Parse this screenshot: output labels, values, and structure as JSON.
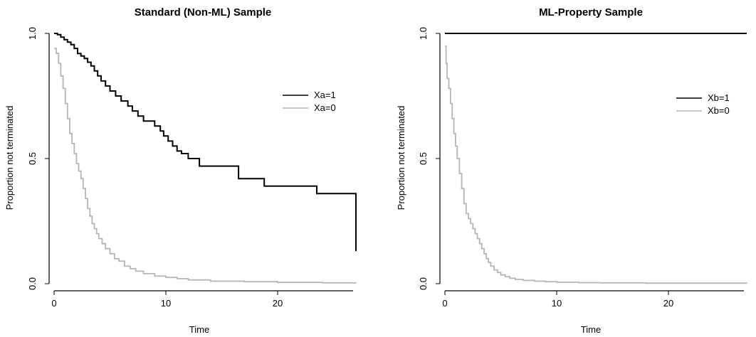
{
  "chart_data": [
    {
      "type": "line",
      "title": "Standard (Non-ML) Sample",
      "xlabel": "Time",
      "ylabel": "Proportion not terminated",
      "xlim": [
        0,
        27
      ],
      "ylim": [
        0,
        1
      ],
      "xticks": [
        "0",
        "10",
        "20"
      ],
      "yticks": [
        "0.0",
        "0.5",
        "1.0"
      ],
      "legend_position": "right",
      "series": [
        {
          "name": "Xa=1",
          "color": "#000000",
          "x": [
            0,
            0.3,
            0.6,
            0.9,
            1.2,
            1.5,
            1.8,
            2.1,
            2.4,
            2.7,
            3.0,
            3.3,
            3.6,
            3.9,
            4.2,
            4.6,
            5.0,
            5.5,
            6.0,
            6.6,
            7.0,
            7.5,
            8.0,
            9.0,
            9.5,
            9.8,
            10.2,
            10.6,
            11.0,
            11.4,
            12.0,
            13.0,
            16.5,
            18.8,
            23.5,
            27.0
          ],
          "y": [
            1.0,
            0.995,
            0.985,
            0.975,
            0.965,
            0.955,
            0.94,
            0.92,
            0.91,
            0.9,
            0.885,
            0.87,
            0.85,
            0.83,
            0.81,
            0.79,
            0.77,
            0.75,
            0.73,
            0.71,
            0.69,
            0.67,
            0.65,
            0.63,
            0.61,
            0.59,
            0.57,
            0.55,
            0.53,
            0.52,
            0.5,
            0.47,
            0.42,
            0.39,
            0.36,
            0.13
          ]
        },
        {
          "name": "Xa=0",
          "color": "#b5b5b5",
          "x": [
            0,
            0.2,
            0.4,
            0.6,
            0.8,
            1.0,
            1.2,
            1.4,
            1.6,
            1.8,
            2.0,
            2.2,
            2.4,
            2.6,
            2.8,
            3.0,
            3.2,
            3.4,
            3.6,
            3.8,
            4.0,
            4.3,
            4.6,
            5.0,
            5.4,
            5.8,
            6.3,
            6.8,
            7.3,
            8.0,
            9.0,
            10.0,
            11.0,
            12.0,
            14.0,
            17.0,
            20.0,
            24.0,
            27.0
          ],
          "y": [
            0.94,
            0.92,
            0.88,
            0.83,
            0.78,
            0.72,
            0.66,
            0.6,
            0.56,
            0.52,
            0.48,
            0.45,
            0.42,
            0.38,
            0.34,
            0.3,
            0.27,
            0.24,
            0.22,
            0.2,
            0.18,
            0.16,
            0.14,
            0.12,
            0.1,
            0.09,
            0.07,
            0.06,
            0.05,
            0.04,
            0.03,
            0.025,
            0.02,
            0.015,
            0.01,
            0.008,
            0.005,
            0.003,
            0.002
          ]
        }
      ]
    },
    {
      "type": "line",
      "title": "ML-Property Sample",
      "xlabel": "Time",
      "ylabel": "Proportion not terminated",
      "xlim": [
        0,
        27
      ],
      "ylim": [
        0,
        1
      ],
      "xticks": [
        "0",
        "10",
        "20"
      ],
      "yticks": [
        "0.0",
        "0.5",
        "1.0"
      ],
      "legend_position": "right",
      "series": [
        {
          "name": "Xb=1",
          "color": "#000000",
          "x": [
            0,
            27.0
          ],
          "y": [
            1.0,
            1.0
          ]
        },
        {
          "name": "Xb=0",
          "color": "#b5b5b5",
          "x": [
            0,
            0.1,
            0.2,
            0.35,
            0.5,
            0.65,
            0.8,
            0.95,
            1.1,
            1.3,
            1.5,
            1.7,
            1.9,
            2.1,
            2.3,
            2.5,
            2.7,
            2.9,
            3.1,
            3.3,
            3.5,
            3.7,
            3.9,
            4.1,
            4.4,
            4.7,
            5.0,
            5.4,
            5.8,
            6.3,
            7.0,
            8.0,
            9.0,
            10.0,
            12.0,
            14.0,
            18.0,
            27.0
          ],
          "y": [
            0.95,
            0.88,
            0.82,
            0.78,
            0.72,
            0.66,
            0.6,
            0.55,
            0.5,
            0.44,
            0.38,
            0.32,
            0.28,
            0.26,
            0.24,
            0.22,
            0.2,
            0.18,
            0.16,
            0.14,
            0.12,
            0.1,
            0.085,
            0.07,
            0.055,
            0.045,
            0.035,
            0.028,
            0.022,
            0.017,
            0.013,
            0.01,
            0.008,
            0.006,
            0.004,
            0.003,
            0.002,
            0.001
          ]
        }
      ]
    }
  ]
}
